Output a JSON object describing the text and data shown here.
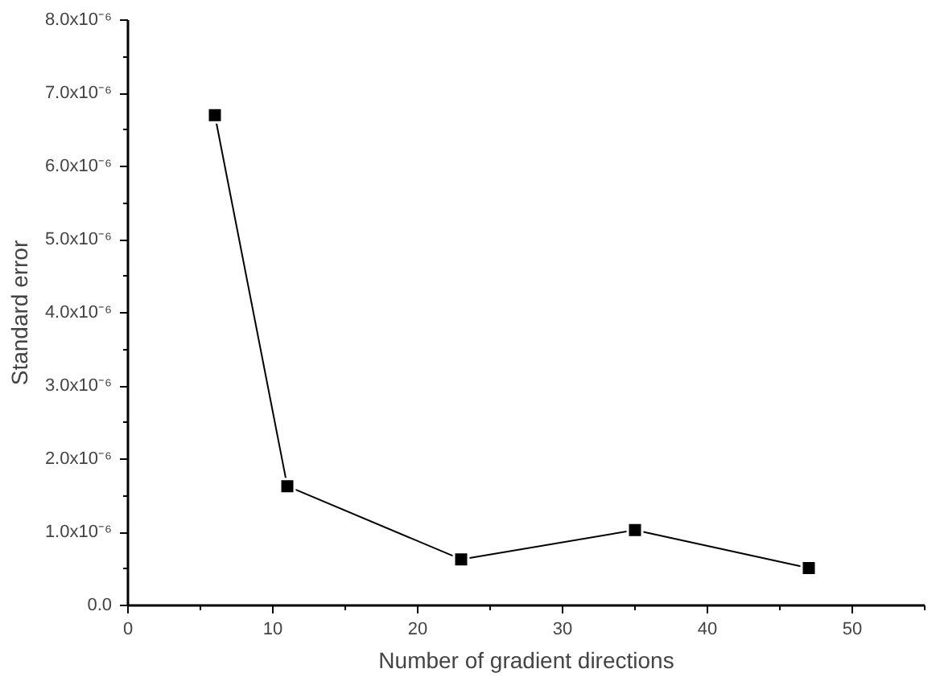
{
  "chart_data": {
    "type": "line",
    "xlabel": "Number of gradient directions",
    "ylabel": "Standard error",
    "x": [
      6,
      11,
      23,
      35,
      47
    ],
    "series": [
      {
        "color": "#000000",
        "values": [
          6.7e-06,
          1.63e-06,
          6.3e-07,
          1.03e-06,
          5.1e-07
        ]
      }
    ],
    "xlim": [
      0,
      55
    ],
    "xticks": [
      0,
      10,
      20,
      30,
      40,
      50
    ],
    "ylim": [
      0,
      8e-06
    ],
    "yticks": [
      {
        "value": 0,
        "label": "0.0"
      },
      {
        "value": 1e-06,
        "label": "1.0x10⁻⁶"
      },
      {
        "value": 2e-06,
        "label": "2.0x10⁻⁶"
      },
      {
        "value": 3e-06,
        "label": "3.0x10⁻⁶"
      },
      {
        "value": 4e-06,
        "label": "4.0x10⁻⁶"
      },
      {
        "value": 5e-06,
        "label": "5.0x10⁻⁶"
      },
      {
        "value": 6e-06,
        "label": "6.0x10⁻⁶"
      },
      {
        "value": 7e-06,
        "label": "7.0x10⁻⁶"
      },
      {
        "value": 8e-06,
        "label": "8.0x10⁻⁶"
      }
    ],
    "grid": false,
    "marker": "square",
    "line_style": "solid"
  }
}
